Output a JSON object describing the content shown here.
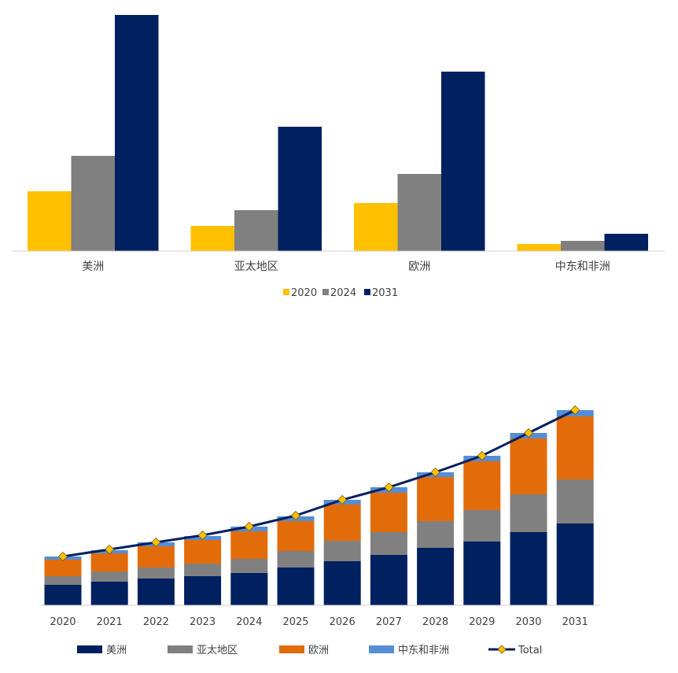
{
  "chart_data": [
    {
      "type": "bar",
      "title": "",
      "categories": [
        "美洲",
        "亚太地区",
        "欧洲",
        "中东和非洲"
      ],
      "series": [
        {
          "name": "2020",
          "color": "#FFC000",
          "values": [
            76,
            32,
            61,
            9
          ]
        },
        {
          "name": "2024",
          "color": "#808080",
          "values": [
            121,
            52,
            98,
            13
          ]
        },
        {
          "name": "2031",
          "color": "#002060",
          "values": [
            300,
            158,
            228,
            22
          ]
        }
      ],
      "ylim": [
        0,
        300
      ],
      "grid": false,
      "legend": "bottom"
    },
    {
      "type": "bar",
      "stacked": true,
      "title": "",
      "categories": [
        "2020",
        "2021",
        "2022",
        "2023",
        "2024",
        "2025",
        "2026",
        "2027",
        "2028",
        "2029",
        "2030",
        "2031"
      ],
      "series": [
        {
          "name": "美洲",
          "color": "#002060",
          "values": [
            26,
            30,
            34,
            37,
            41,
            48,
            56,
            64,
            73,
            81,
            93,
            104
          ]
        },
        {
          "name": "亚太地区",
          "color": "#808080",
          "values": [
            11,
            13,
            14,
            16,
            18,
            21,
            26,
            29,
            34,
            40,
            48,
            56
          ]
        },
        {
          "name": "欧洲",
          "color": "#E36C0A",
          "values": [
            21,
            23,
            27,
            30,
            35,
            38,
            46,
            50,
            56,
            62,
            71,
            80
          ]
        },
        {
          "name": "中东和非洲",
          "color": "#558ED5",
          "values": [
            4,
            4,
            5,
            5,
            6,
            6,
            6,
            7,
            6,
            7,
            7,
            8
          ]
        }
      ],
      "line": {
        "name": "Total",
        "color": "#002060",
        "marker_color": "#FFC000",
        "values": [
          62,
          71,
          80,
          89,
          100,
          114,
          134,
          150,
          169,
          190,
          219,
          248
        ]
      },
      "ylim": [
        0,
        250
      ],
      "grid": false,
      "legend": "bottom"
    }
  ]
}
